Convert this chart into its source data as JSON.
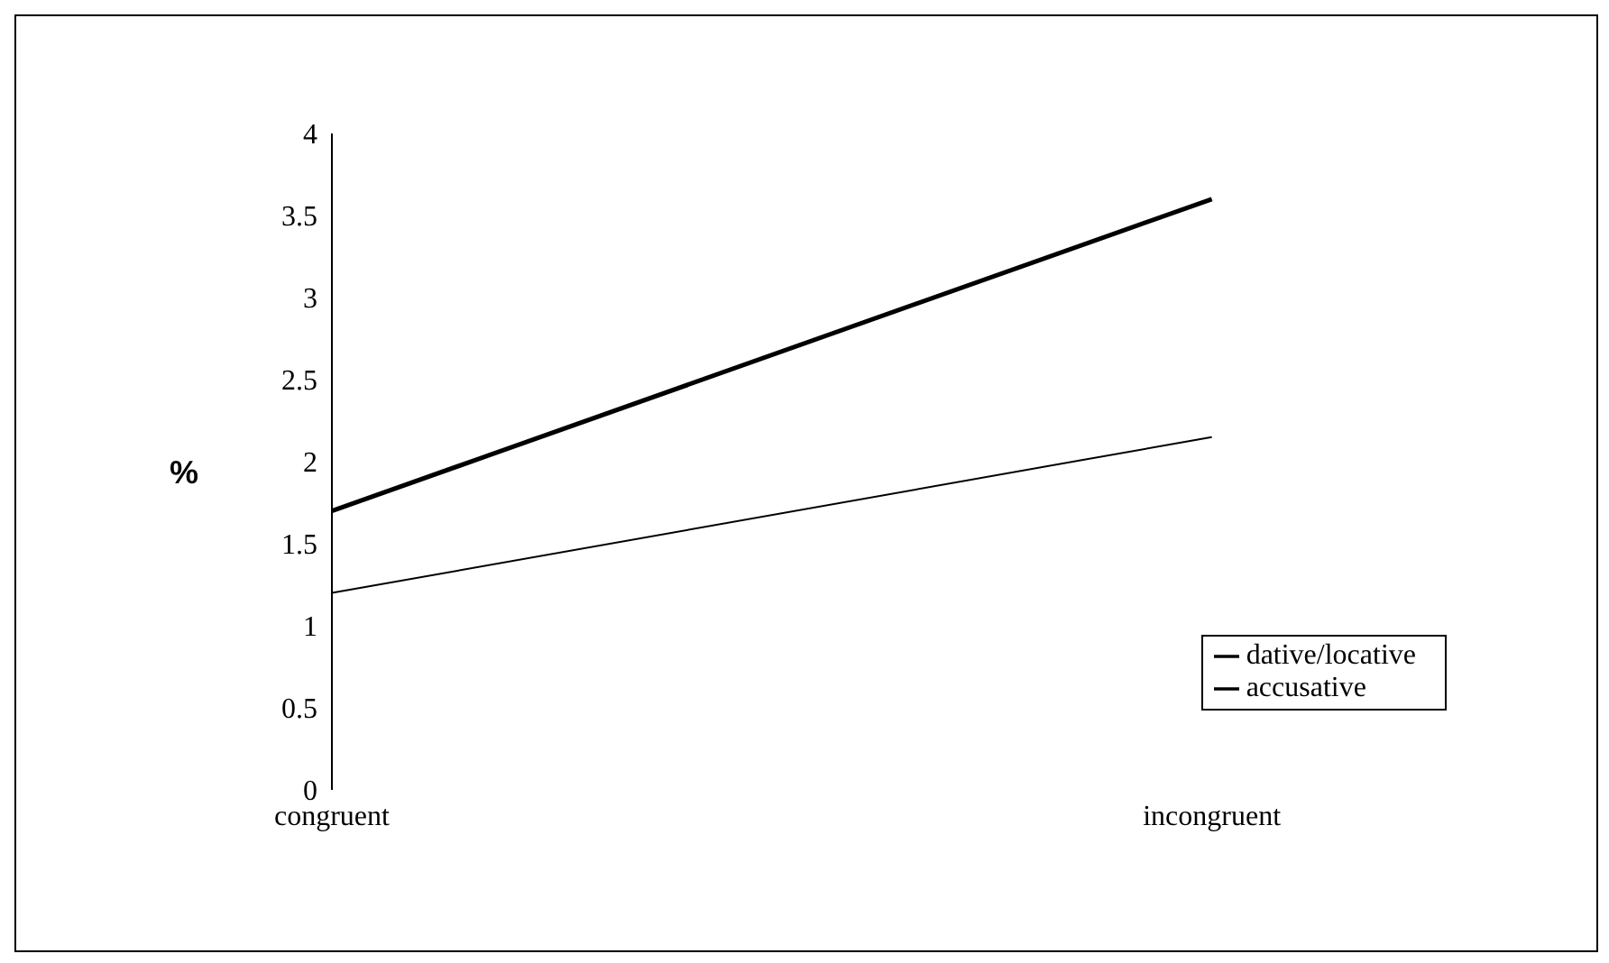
{
  "chart_data": {
    "type": "line",
    "ylabel": "%",
    "categories": [
      "congruent",
      "incongruent"
    ],
    "series": [
      {
        "name": "dative/locative",
        "color": "#000000",
        "values": [
          1.2,
          2.15
        ]
      },
      {
        "name": "accusative",
        "color": "#000000",
        "values": [
          1.7,
          3.6
        ]
      }
    ],
    "ylim": [
      0,
      4
    ],
    "yticks": [
      0,
      0.5,
      1,
      1.5,
      2,
      2.5,
      3,
      3.5,
      4
    ],
    "grid": false,
    "legend": "bottom right",
    "marker": "none",
    "line_style": "solid"
  }
}
